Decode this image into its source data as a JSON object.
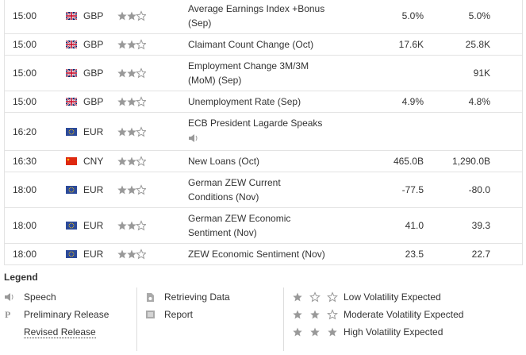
{
  "calendar": {
    "rows": [
      {
        "time": "15:00",
        "currency": "GBP",
        "volatility": 2,
        "event": "Average Earnings Index +Bonus (Sep)",
        "actual": "5.0%",
        "forecast": "5.0%"
      },
      {
        "time": "15:00",
        "currency": "GBP",
        "volatility": 2,
        "event": "Claimant Count Change (Oct)",
        "actual": "17.6K",
        "forecast": "25.8K"
      },
      {
        "time": "15:00",
        "currency": "GBP",
        "volatility": 2,
        "event": "Employment Change 3M/3M (MoM) (Sep)",
        "actual": null,
        "forecast": "91K"
      },
      {
        "time": "15:00",
        "currency": "GBP",
        "volatility": 2,
        "event": "Unemployment Rate (Sep)",
        "actual": "4.9%",
        "forecast": "4.8%"
      },
      {
        "time": "16:20",
        "currency": "EUR",
        "volatility": 2,
        "event": "ECB President Lagarde Speaks",
        "speech": true,
        "actual": null,
        "forecast": null
      },
      {
        "time": "16:30",
        "currency": "CNY",
        "volatility": 2,
        "event": "New Loans (Oct)",
        "actual": "465.0B",
        "forecast": "1,290.0B"
      },
      {
        "time": "18:00",
        "currency": "EUR",
        "volatility": 2,
        "event": "German ZEW Current Conditions (Nov)",
        "actual": "-77.5",
        "forecast": "-80.0"
      },
      {
        "time": "18:00",
        "currency": "EUR",
        "volatility": 2,
        "event": "German ZEW Economic Sentiment (Nov)",
        "actual": "41.0",
        "forecast": "39.3"
      },
      {
        "time": "18:00",
        "currency": "EUR",
        "volatility": 2,
        "event": "ZEW Economic Sentiment (Nov)",
        "actual": "23.5",
        "forecast": "22.7"
      }
    ]
  },
  "legend": {
    "title": "Legend",
    "speech": "Speech",
    "preliminary": {
      "icon": "P",
      "label": "Preliminary Release"
    },
    "revised": "Revised Release",
    "retrieving": "Retrieving Data",
    "report": "Report",
    "volatility": [
      {
        "level": 1,
        "label": "Low Volatility Expected"
      },
      {
        "level": 2,
        "label": "Moderate Volatility Expected"
      },
      {
        "level": 3,
        "label": "High Volatility Expected"
      }
    ]
  }
}
